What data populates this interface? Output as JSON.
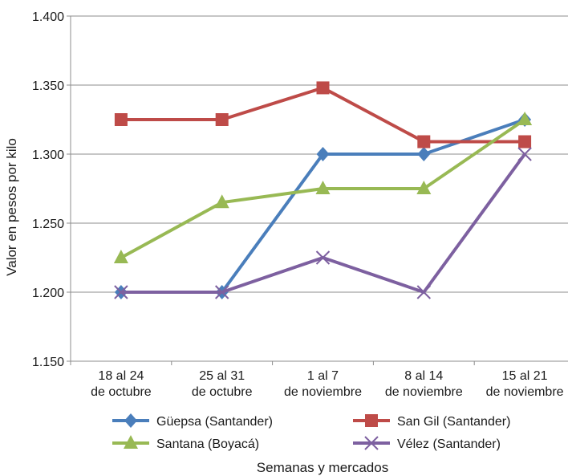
{
  "chart_data": {
    "type": "line",
    "title": "",
    "xlabel": "Semanas y mercados",
    "ylabel": "Valor en pesos por kilo",
    "categories": [
      [
        "18 al 24",
        "de octubre"
      ],
      [
        "25 al 31",
        "de octubre"
      ],
      [
        "1 al 7",
        "de noviembre"
      ],
      [
        "8 al 14",
        "de noviembre"
      ],
      [
        "15 al 21",
        "de noviembre"
      ]
    ],
    "ylim": [
      1150,
      1400
    ],
    "yticks": [
      1150,
      1200,
      1250,
      1300,
      1350,
      1400
    ],
    "ytick_labels": [
      "1.150",
      "1.200",
      "1.250",
      "1.300",
      "1.350",
      "1.400"
    ],
    "grid": "horizontal",
    "legend_position": "bottom",
    "series": [
      {
        "name": "Güepsa (Santander)",
        "values": [
          1200,
          1200,
          1300,
          1300,
          1325
        ],
        "color": "#4a7ebb",
        "marker": "diamond"
      },
      {
        "name": "San Gil (Santander)",
        "values": [
          1325,
          1325,
          1348,
          1309,
          1309
        ],
        "color": "#be4b48",
        "marker": "square"
      },
      {
        "name": "Santana (Boyacá)",
        "values": [
          1225,
          1265,
          1275,
          1275,
          1325
        ],
        "color": "#98b954",
        "marker": "triangle"
      },
      {
        "name": "Vélez (Santander)",
        "values": [
          1200,
          1200,
          1225,
          1200,
          1300
        ],
        "color": "#7d60a0",
        "marker": "x"
      }
    ]
  }
}
